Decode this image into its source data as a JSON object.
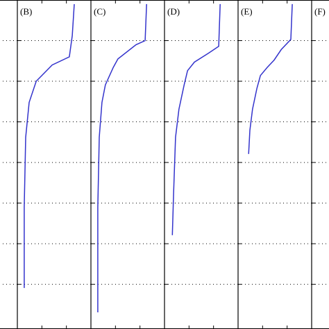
{
  "chart_data": [
    {
      "type": "line",
      "title": "(B)",
      "color": "#3333cc",
      "xlim": [
        0,
        3
      ],
      "xticks": [
        1,
        2
      ],
      "ylim": [
        0,
        8.1
      ],
      "yticks": [
        1,
        2,
        3,
        4,
        5,
        6,
        7
      ],
      "x": [
        2.32,
        2.24,
        2.12,
        1.42,
        0.77,
        0.48,
        0.34,
        0.28,
        0.28
      ],
      "y": [
        0.1,
        0.88,
        1.4,
        1.6,
        2.0,
        2.52,
        3.38,
        5.1,
        7.09
      ]
    },
    {
      "type": "line",
      "title": "(C)",
      "color": "#3333cc",
      "xlim": [
        0,
        3
      ],
      "xticks": [
        1,
        2
      ],
      "ylim": [
        0,
        8.1
      ],
      "yticks": [
        1,
        2,
        3,
        4,
        5,
        6,
        7
      ],
      "x": [
        2.27,
        2.21,
        1.84,
        1.1,
        0.91,
        0.59,
        0.45,
        0.34,
        0.28,
        0.28
      ],
      "y": [
        0.1,
        1.0,
        1.1,
        1.45,
        1.66,
        2.09,
        2.52,
        3.38,
        5.1,
        7.69
      ]
    },
    {
      "type": "line",
      "title": "(D)",
      "color": "#3333cc",
      "xlim": [
        0,
        3
      ],
      "xticks": [
        1,
        2
      ],
      "ylim": [
        0,
        8.1
      ],
      "yticks": [
        1,
        2,
        3,
        4,
        5,
        6,
        7
      ],
      "x": [
        2.27,
        2.21,
        1.79,
        1.22,
        0.94,
        0.8,
        0.59,
        0.45,
        0.37,
        0.32
      ],
      "y": [
        0.1,
        1.14,
        1.31,
        1.53,
        1.74,
        2.09,
        2.69,
        3.38,
        4.76,
        5.79
      ]
    },
    {
      "type": "line",
      "title": "(E)",
      "color": "#3333cc",
      "xlim": [
        0,
        3
      ],
      "xticks": [
        1,
        2
      ],
      "ylim": [
        0,
        8.1
      ],
      "yticks": [
        1,
        2,
        3,
        4,
        5,
        6,
        7
      ],
      "x": [
        2.21,
        2.15,
        1.76,
        1.47,
        1.19,
        0.91,
        0.77,
        0.59,
        0.48,
        0.43
      ],
      "y": [
        0.1,
        0.97,
        1.22,
        1.48,
        1.66,
        1.86,
        2.17,
        2.69,
        3.21,
        3.79
      ]
    },
    {
      "type": "line",
      "title": "(F)",
      "xlim": [
        0,
        3
      ],
      "xticks": [
        1,
        2
      ],
      "ylim": [
        0,
        8.1
      ],
      "yticks": [
        1,
        2,
        3,
        4,
        5,
        6,
        7
      ]
    }
  ]
}
